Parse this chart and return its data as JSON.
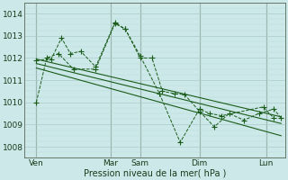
{
  "background_color": "#cce8e8",
  "grid_color_major": "#aacccc",
  "grid_color_minor": "#bbdddd",
  "line_color": "#1a5c1a",
  "vline_color": "#778877",
  "xlabel": "Pression niveau de la mer( hPa )",
  "ylim": [
    1007.5,
    1014.5
  ],
  "yticks": [
    1008,
    1009,
    1010,
    1011,
    1012,
    1013,
    1014
  ],
  "xlim": [
    -0.3,
    17.3
  ],
  "x_day_labels": [
    "Ven",
    "Mar",
    "Sam",
    "Dim",
    "Lun"
  ],
  "x_day_positions": [
    0.5,
    5.5,
    7.5,
    11.5,
    16.0
  ],
  "x_vlines": [
    0.5,
    5.5,
    7.5,
    11.5,
    16.0
  ],
  "series1_x": [
    0.5,
    1.5,
    2.2,
    2.8,
    3.5,
    4.5,
    5.8,
    6.5,
    7.5,
    8.3,
    9.0,
    9.8,
    10.5,
    11.5,
    12.5,
    13.5,
    14.5,
    15.5,
    16.5,
    17.0
  ],
  "series1_y": [
    1011.9,
    1011.95,
    1012.9,
    1012.2,
    1012.3,
    1011.6,
    1013.6,
    1013.3,
    1012.0,
    1012.0,
    1010.5,
    1010.4,
    1010.35,
    1009.6,
    1008.9,
    1009.5,
    1009.2,
    1009.5,
    1009.7,
    1009.3
  ],
  "series2_x": [
    0.5,
    1.2,
    2.0,
    3.0,
    4.5,
    5.8,
    6.5,
    7.5,
    8.8,
    10.2,
    11.5,
    12.2,
    13.0,
    15.8,
    16.5
  ],
  "series2_y": [
    1010.0,
    1012.0,
    1012.2,
    1011.5,
    1011.5,
    1013.55,
    1013.3,
    1012.1,
    1010.4,
    1008.2,
    1009.7,
    1009.5,
    1009.4,
    1009.8,
    1009.3
  ],
  "trend1_x": [
    0.5,
    17.0
  ],
  "trend1_y": [
    1011.95,
    1009.35
  ],
  "trend2_x": [
    0.5,
    17.0
  ],
  "trend2_y": [
    1011.75,
    1009.05
  ],
  "trend3_x": [
    0.5,
    17.0
  ],
  "trend3_y": [
    1011.55,
    1008.5
  ]
}
